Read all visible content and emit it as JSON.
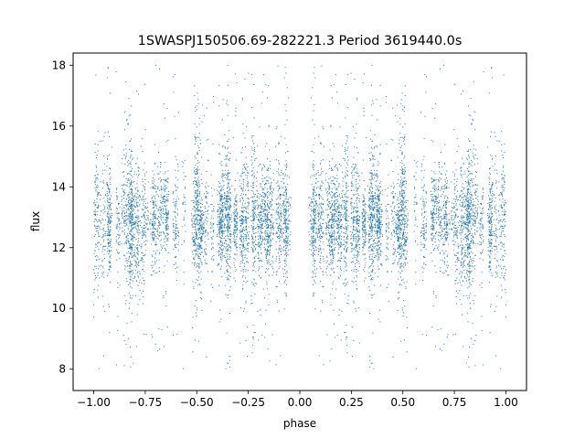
{
  "chart_data": {
    "type": "scatter",
    "title": "1SWASPJ150506.69-282221.3 Period 3619440.0s",
    "xlabel": "phase",
    "ylabel": "flux",
    "xlim": [
      -1.1,
      1.1
    ],
    "ylim": [
      7.3,
      18.4
    ],
    "x_ticks": [
      -1.0,
      -0.75,
      -0.5,
      -0.25,
      0.0,
      0.25,
      0.5,
      0.75,
      1.0
    ],
    "x_tick_labels": [
      "−1.00",
      "−0.75",
      "−0.50",
      "−0.25",
      "0.00",
      "0.25",
      "0.50",
      "0.75",
      "1.00"
    ],
    "y_ticks": [
      8,
      10,
      12,
      14,
      16,
      18
    ],
    "y_tick_labels": [
      "8",
      "10",
      "12",
      "14",
      "16",
      "18"
    ],
    "grid": false,
    "legend": "none",
    "point_color": "#1f77b4",
    "series": [
      {
        "phase_range": [
          -1.0,
          1.0
        ],
        "flux_core_range": [
          11.5,
          14.5
        ],
        "flux_extreme_range": [
          7.9,
          18.0
        ],
        "flux_median_approx": 12.9,
        "mirrored_about_phase_zero": true,
        "note_points": "dense scatter of several thousand points"
      }
    ]
  }
}
